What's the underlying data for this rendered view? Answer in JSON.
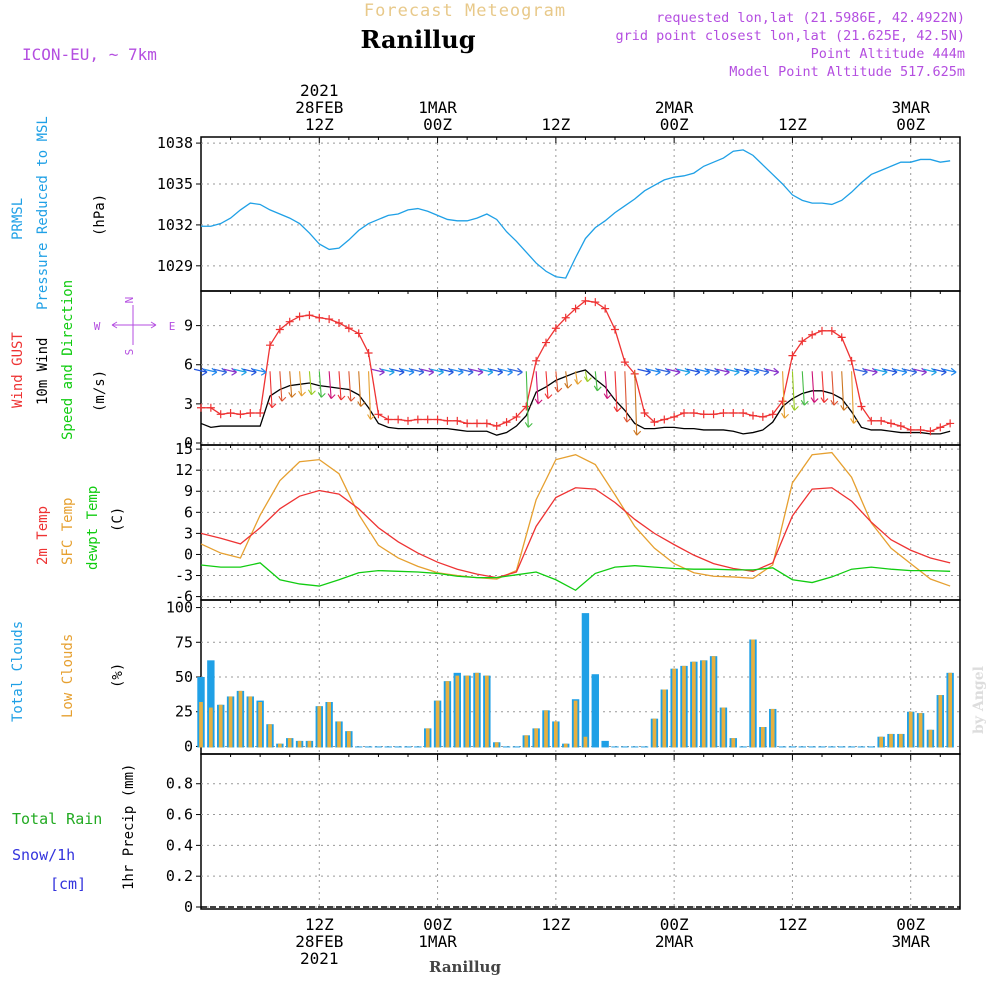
{
  "header": {
    "forecast_title": "Forecast Meteogram",
    "location": "Ranillug",
    "model": "ICON-EU, ~ 7km",
    "requested": "requested lon,lat (21.5986E, 42.4922N)",
    "grid_point": "grid point closest lon,lat (21.625E, 42.5N)",
    "point_altitude": "Point Altitude 444m",
    "model_altitude": "Model Point Altitude 517.625m",
    "watermark": "by Angel",
    "footer_location": "Ranillug"
  },
  "colors": {
    "pressure": "#1fa0e6",
    "gust": "#ee3333",
    "wind": "#000000",
    "temp2m": "#ee3333",
    "sfctemp": "#e6a030",
    "dewpt": "#11cc11",
    "total_clouds": "#1fa0e6",
    "low_clouds": "#e6b040",
    "rain": "#22aa22",
    "snow": "#3333dd",
    "header_purple": "#b44ee0"
  },
  "time_axis": {
    "top_labels": [
      {
        "lines": [
          "2021",
          "28FEB",
          "12Z"
        ],
        "hour": 12
      },
      {
        "lines": [
          "1MAR",
          "00Z"
        ],
        "hour": 24
      },
      {
        "lines": [
          "12Z"
        ],
        "hour": 36
      },
      {
        "lines": [
          "2MAR",
          "00Z"
        ],
        "hour": 48
      },
      {
        "lines": [
          "12Z"
        ],
        "hour": 60
      },
      {
        "lines": [
          "3MAR",
          "00Z"
        ],
        "hour": 72
      }
    ],
    "bottom_labels": [
      {
        "lines": [
          "12Z",
          "28FEB",
          "2021"
        ],
        "hour": 12
      },
      {
        "lines": [
          "00Z",
          "1MAR"
        ],
        "hour": 24
      },
      {
        "lines": [
          "12Z"
        ],
        "hour": 36
      },
      {
        "lines": [
          "00Z",
          "2MAR"
        ],
        "hour": 48
      },
      {
        "lines": [
          "12Z"
        ],
        "hour": 60
      },
      {
        "lines": [
          "00Z",
          "3MAR"
        ],
        "hour": 72
      }
    ],
    "start_hour": 0,
    "end_hour": 77
  },
  "chart_data": [
    {
      "type": "line",
      "name": "pressure",
      "ylabels": [
        "PRMSL",
        "Pressure Reduced to MSL",
        "(hPa)"
      ],
      "yticks": [
        1029,
        1032,
        1035,
        1038
      ],
      "ylim": [
        1027.3,
        1038.3
      ],
      "grid": true,
      "series": [
        {
          "name": "PRMSL",
          "x": [
            0,
            1,
            2,
            3,
            4,
            5,
            6,
            7,
            8,
            9,
            10,
            11,
            12,
            13,
            14,
            15,
            16,
            17,
            18,
            19,
            20,
            21,
            22,
            23,
            24,
            25,
            26,
            27,
            28,
            29,
            30,
            31,
            32,
            33,
            34,
            35,
            36,
            37,
            38,
            39,
            40,
            41,
            42,
            43,
            44,
            45,
            46,
            47,
            48,
            49,
            50,
            51,
            52,
            53,
            54,
            55,
            56,
            57,
            58,
            59,
            60,
            61,
            62,
            63,
            64,
            65,
            66,
            67,
            68,
            69,
            70,
            71,
            72,
            73,
            74,
            75,
            76
          ],
          "values": [
            1031.9,
            1031.9,
            1032.1,
            1032.5,
            1033.1,
            1033.6,
            1033.5,
            1033.1,
            1032.8,
            1032.5,
            1032.1,
            1031.4,
            1030.6,
            1030.2,
            1030.3,
            1030.9,
            1031.6,
            1032.1,
            1032.4,
            1032.7,
            1032.8,
            1033.1,
            1033.2,
            1033.0,
            1032.7,
            1032.4,
            1032.3,
            1032.3,
            1032.5,
            1032.8,
            1032.4,
            1031.5,
            1030.8,
            1030.0,
            1029.2,
            1028.6,
            1028.2,
            1028.1,
            1029.6,
            1031.0,
            1031.8,
            1032.3,
            1032.9,
            1033.4,
            1033.9,
            1034.5,
            1034.9,
            1035.3,
            1035.5,
            1035.6,
            1035.8,
            1036.3,
            1036.6,
            1036.9,
            1037.4,
            1037.5,
            1037.1,
            1036.4,
            1035.7,
            1035.0,
            1034.2,
            1033.8,
            1033.6,
            1033.6,
            1033.5,
            1033.8,
            1034.4,
            1035.1,
            1035.7,
            1036.0,
            1036.3,
            1036.6,
            1036.6,
            1036.8,
            1036.8,
            1036.6,
            1036.7
          ]
        }
      ]
    },
    {
      "type": "line",
      "name": "wind",
      "ylabels": [
        "Wind GUST",
        "10m Wind",
        "Speed and Direction",
        "(m/s)"
      ],
      "compass": {
        "n": "N",
        "s": "S",
        "e": "E",
        "w": "W"
      },
      "yticks": [
        0,
        3,
        6,
        9
      ],
      "ylim": [
        0,
        11.5
      ],
      "grid": true,
      "series": [
        {
          "name": "Wind GUST",
          "x": [
            0,
            1,
            2,
            3,
            4,
            5,
            6,
            7,
            8,
            9,
            10,
            11,
            12,
            13,
            14,
            15,
            16,
            17,
            18,
            19,
            20,
            21,
            22,
            23,
            24,
            25,
            26,
            27,
            28,
            29,
            30,
            31,
            32,
            33,
            34,
            35,
            36,
            37,
            38,
            39,
            40,
            41,
            42,
            43,
            44,
            45,
            46,
            47,
            48,
            49,
            50,
            51,
            52,
            53,
            54,
            55,
            56,
            57,
            58,
            59,
            60,
            61,
            62,
            63,
            64,
            65,
            66,
            67,
            68,
            69,
            70,
            71,
            72,
            73,
            74,
            75,
            76
          ],
          "values": [
            2.7,
            2.7,
            2.2,
            2.3,
            2.2,
            2.3,
            2.3,
            7.5,
            8.7,
            9.3,
            9.7,
            9.8,
            9.6,
            9.5,
            9.2,
            8.8,
            8.4,
            6.9,
            2.2,
            1.8,
            1.8,
            1.7,
            1.8,
            1.8,
            1.8,
            1.7,
            1.7,
            1.5,
            1.5,
            1.5,
            1.3,
            1.6,
            2.0,
            2.8,
            6.3,
            7.7,
            8.8,
            9.6,
            10.3,
            10.9,
            10.8,
            10.3,
            8.7,
            6.2,
            5.3,
            2.3,
            1.6,
            1.8,
            2.0,
            2.3,
            2.3,
            2.2,
            2.2,
            2.3,
            2.3,
            2.3,
            2.1,
            2.0,
            2.2,
            3.2,
            6.7,
            7.8,
            8.3,
            8.6,
            8.6,
            8.1,
            6.3,
            2.8,
            1.7,
            1.7,
            1.5,
            1.3,
            1.0,
            1.0,
            0.9,
            1.2,
            1.5
          ]
        },
        {
          "name": "10m Wind",
          "x": [
            0,
            1,
            2,
            3,
            4,
            5,
            6,
            7,
            8,
            9,
            10,
            11,
            12,
            13,
            14,
            15,
            16,
            17,
            18,
            19,
            20,
            21,
            22,
            23,
            24,
            25,
            26,
            27,
            28,
            29,
            30,
            31,
            32,
            33,
            34,
            35,
            36,
            37,
            38,
            39,
            40,
            41,
            42,
            43,
            44,
            45,
            46,
            47,
            48,
            49,
            50,
            51,
            52,
            53,
            54,
            55,
            56,
            57,
            58,
            59,
            60,
            61,
            62,
            63,
            64,
            65,
            66,
            67,
            68,
            69,
            70,
            71,
            72,
            73,
            74,
            75,
            76
          ],
          "values": [
            1.5,
            1.2,
            1.3,
            1.3,
            1.3,
            1.3,
            1.3,
            3.6,
            4.1,
            4.4,
            4.5,
            4.6,
            4.4,
            4.3,
            4.2,
            4.1,
            3.7,
            2.7,
            1.5,
            1.2,
            1.1,
            1.1,
            1.1,
            1.1,
            1.1,
            1.1,
            1.0,
            0.9,
            0.9,
            0.9,
            0.6,
            0.8,
            1.3,
            2.1,
            3.9,
            4.3,
            4.8,
            5.1,
            5.4,
            5.6,
            4.9,
            4.3,
            3.3,
            2.5,
            1.5,
            1.1,
            1.1,
            1.2,
            1.2,
            1.1,
            1.1,
            1.0,
            1.0,
            1.0,
            0.9,
            0.7,
            0.8,
            1.0,
            1.6,
            2.8,
            3.4,
            3.8,
            4.0,
            4.0,
            3.8,
            3.4,
            2.4,
            1.2,
            1.0,
            1.0,
            0.9,
            0.8,
            0.8,
            0.8,
            0.7,
            0.7,
            0.9
          ]
        }
      ]
    },
    {
      "type": "line",
      "name": "temperature",
      "ylabels": [
        "2m Temp",
        "SFC Temp",
        "dewpt Temp",
        "(C)"
      ],
      "yticks": [
        -6,
        -3,
        0,
        3,
        6,
        9,
        12,
        15
      ],
      "ylim": [
        -6.2,
        15.3
      ],
      "grid": true,
      "series": [
        {
          "name": "2m Temp",
          "x": [
            0,
            2,
            4,
            6,
            8,
            10,
            12,
            14,
            16,
            18,
            20,
            22,
            24,
            26,
            28,
            30,
            32,
            34,
            36,
            38,
            40,
            42,
            44,
            46,
            48,
            50,
            52,
            54,
            56,
            58,
            60,
            62,
            64,
            66,
            68,
            70,
            72,
            74,
            76
          ],
          "values": [
            3.0,
            2.3,
            1.5,
            3.8,
            6.5,
            8.3,
            9.1,
            8.6,
            6.5,
            3.8,
            1.8,
            0.2,
            -1.1,
            -2.1,
            -2.8,
            -3.3,
            -2.5,
            4.0,
            8.1,
            9.5,
            9.3,
            7.4,
            5.0,
            3.0,
            1.4,
            -0.1,
            -1.3,
            -2.0,
            -2.4,
            -1.2,
            5.5,
            9.3,
            9.5,
            7.6,
            4.6,
            2.1,
            0.6,
            -0.5,
            -1.2
          ]
        },
        {
          "name": "SFC Temp",
          "x": [
            0,
            2,
            4,
            6,
            8,
            10,
            12,
            14,
            16,
            18,
            20,
            22,
            24,
            26,
            28,
            30,
            32,
            34,
            36,
            38,
            40,
            42,
            44,
            46,
            48,
            50,
            52,
            54,
            56,
            58,
            60,
            62,
            64,
            66,
            68,
            70,
            72,
            74,
            76
          ],
          "values": [
            1.5,
            0.2,
            -0.5,
            5.6,
            10.5,
            13.2,
            13.5,
            11.5,
            5.7,
            1.3,
            -0.5,
            -1.7,
            -2.6,
            -3.0,
            -3.3,
            -3.5,
            -2.3,
            7.8,
            13.5,
            14.2,
            12.8,
            8.5,
            4.0,
            0.9,
            -1.3,
            -2.6,
            -3.1,
            -3.2,
            -3.4,
            -1.5,
            10.2,
            14.2,
            14.5,
            11.0,
            4.5,
            0.9,
            -1.3,
            -3.5,
            -4.5
          ]
        },
        {
          "name": "dewpt Temp",
          "x": [
            0,
            2,
            4,
            6,
            8,
            10,
            12,
            14,
            16,
            18,
            20,
            22,
            24,
            26,
            28,
            30,
            32,
            34,
            36,
            38,
            40,
            42,
            44,
            46,
            48,
            50,
            52,
            54,
            56,
            58,
            60,
            62,
            64,
            66,
            68,
            70,
            72,
            74,
            76
          ],
          "values": [
            -1.5,
            -1.8,
            -1.8,
            -1.2,
            -3.6,
            -4.2,
            -4.5,
            -3.6,
            -2.6,
            -2.3,
            -2.4,
            -2.5,
            -2.7,
            -3.1,
            -3.3,
            -3.3,
            -2.9,
            -2.5,
            -3.6,
            -5.1,
            -2.7,
            -1.8,
            -1.6,
            -1.8,
            -2.0,
            -2.1,
            -2.1,
            -2.2,
            -2.2,
            -1.9,
            -3.6,
            -4.0,
            -3.2,
            -2.1,
            -1.8,
            -2.1,
            -2.3,
            -2.3,
            -2.4
          ]
        }
      ]
    },
    {
      "type": "bar",
      "name": "clouds",
      "ylabels": [
        "Total Clouds",
        "Low Clouds",
        "(%)"
      ],
      "yticks": [
        0,
        25,
        50,
        75,
        100
      ],
      "ylim": [
        -4,
        104
      ],
      "grid": true,
      "x": [
        0,
        1,
        2,
        3,
        4,
        5,
        6,
        7,
        8,
        9,
        10,
        11,
        12,
        13,
        14,
        15,
        16,
        17,
        18,
        19,
        20,
        21,
        22,
        23,
        24,
        25,
        26,
        27,
        28,
        29,
        30,
        31,
        32,
        33,
        34,
        35,
        36,
        37,
        38,
        39,
        40,
        41,
        42,
        43,
        44,
        45,
        46,
        47,
        48,
        49,
        50,
        51,
        52,
        53,
        54,
        55,
        56,
        57,
        58,
        59,
        60,
        61,
        62,
        63,
        64,
        65,
        66,
        67,
        68,
        69,
        70,
        71,
        72,
        73,
        74,
        75,
        76
      ],
      "series": [
        {
          "name": "Total Clouds",
          "values": [
            50,
            62,
            30,
            36,
            40,
            36,
            33,
            16,
            2,
            6,
            4,
            4,
            29,
            32,
            18,
            11,
            0,
            0,
            0,
            0,
            0,
            0,
            0,
            13,
            33,
            47,
            53,
            51,
            53,
            51,
            3,
            0,
            0,
            8,
            13,
            26,
            18,
            2,
            34,
            96,
            52,
            4,
            0,
            0,
            0,
            0,
            20,
            41,
            56,
            58,
            61,
            62,
            65,
            28,
            6,
            0,
            77,
            14,
            27,
            0,
            0,
            0,
            0,
            0,
            0,
            0,
            0,
            0,
            0,
            7,
            9,
            9,
            25,
            24,
            12,
            37,
            53
          ]
        },
        {
          "name": "Low Clouds",
          "values": [
            32,
            28,
            30,
            36,
            40,
            36,
            32,
            16,
            2,
            6,
            4,
            4,
            29,
            32,
            18,
            11,
            0,
            0,
            0,
            0,
            0,
            0,
            0,
            13,
            33,
            47,
            51,
            51,
            53,
            51,
            3,
            0,
            0,
            8,
            13,
            26,
            18,
            2,
            33,
            7,
            0,
            0,
            0,
            0,
            0,
            0,
            20,
            41,
            56,
            58,
            61,
            62,
            65,
            28,
            6,
            0,
            77,
            14,
            27,
            0,
            0,
            0,
            0,
            0,
            0,
            0,
            0,
            0,
            0,
            7,
            9,
            9,
            25,
            24,
            12,
            37,
            53
          ]
        }
      ]
    },
    {
      "type": "bar",
      "name": "precip",
      "ylabels": [
        "1hr Precip (mm)"
      ],
      "left_labels": [
        "Total  Rain",
        "Snow/1h",
        "[cm]"
      ],
      "yticks": [
        0,
        0.2,
        0.4,
        0.6,
        0.8
      ],
      "ylim": [
        0,
        0.98
      ],
      "grid": true,
      "series": [
        {
          "name": "Total Rain",
          "values": []
        }
      ]
    }
  ]
}
